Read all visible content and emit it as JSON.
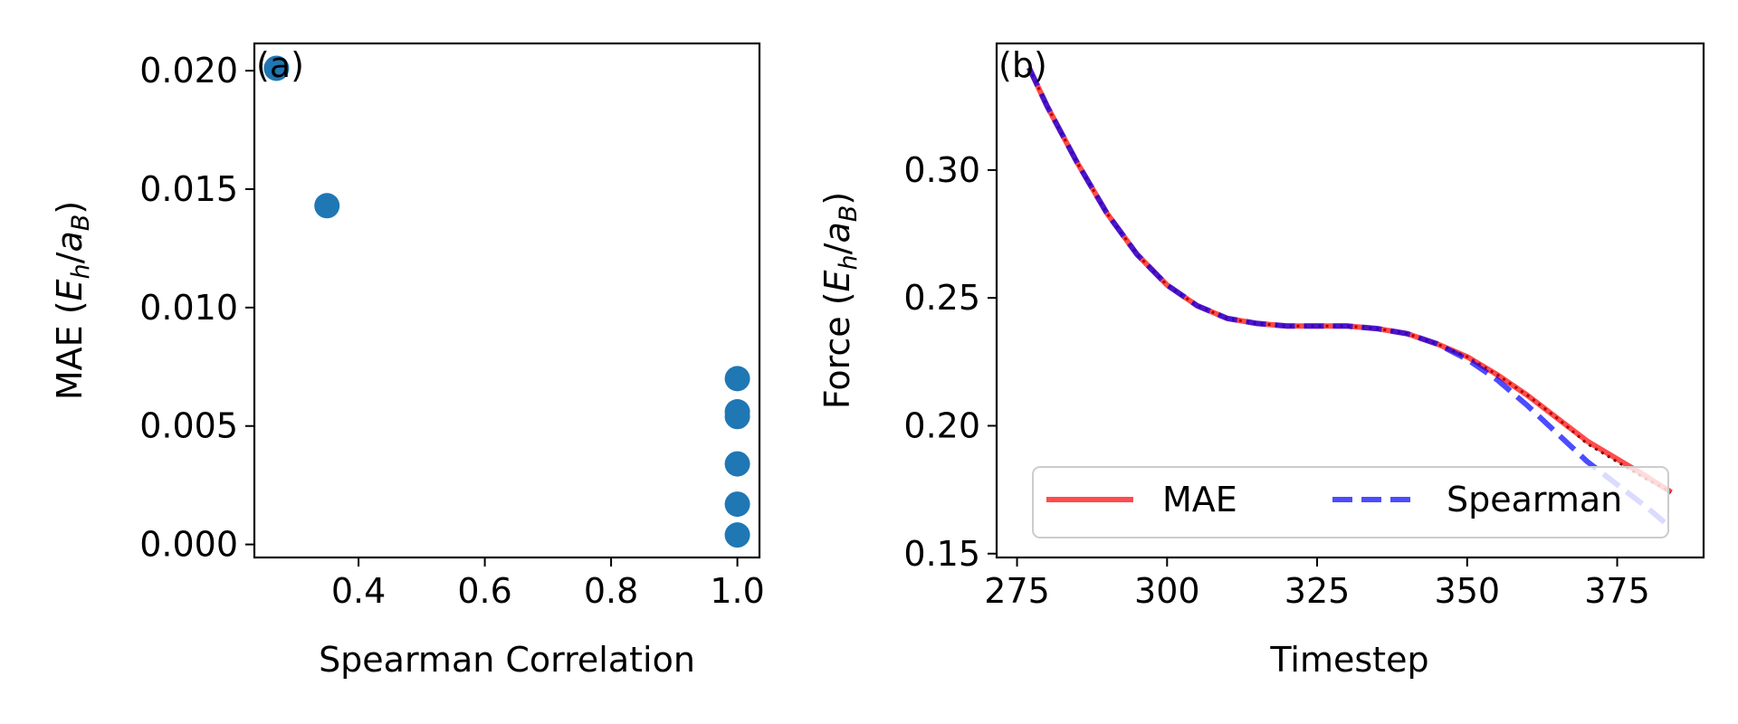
{
  "chart_data": [
    {
      "type": "scatter",
      "panel_label": "(a)",
      "xlabel": "Spearman Correlation",
      "ylabel_main": "MAE (",
      "ylabel_E": "E",
      "ylabel_h": "h",
      "ylabel_slash": "/",
      "ylabel_a": "a",
      "ylabel_B": "B",
      "ylabel_close": ")",
      "xlim": [
        0.235,
        1.035
      ],
      "ylim": [
        -0.00055,
        0.02115
      ],
      "xticks": [
        0.4,
        0.6,
        0.8,
        1.0
      ],
      "xtick_labels": [
        "0.4",
        "0.6",
        "0.8",
        "1.0"
      ],
      "yticks": [
        0.0,
        0.005,
        0.01,
        0.015,
        0.02
      ],
      "ytick_labels": [
        "0.000",
        "0.005",
        "0.010",
        "0.015",
        "0.020"
      ],
      "marker_color": "#1f77b4",
      "x": [
        0.27,
        0.35,
        1.0,
        1.0,
        1.0,
        1.0,
        1.0,
        1.0
      ],
      "y": [
        0.0201,
        0.0143,
        0.007,
        0.0056,
        0.0054,
        0.0034,
        0.0017,
        0.0004
      ],
      "grid": false
    },
    {
      "type": "line",
      "panel_label": "(b)",
      "xlabel": "Timestep",
      "ylabel_main": "Force (",
      "ylabel_E": "E",
      "ylabel_h": "h",
      "ylabel_slash": "/",
      "ylabel_a": "a",
      "ylabel_B": "B",
      "ylabel_close": ")",
      "xlim": [
        271.6,
        389.4
      ],
      "ylim": [
        0.1485,
        0.3495
      ],
      "xticks": [
        275,
        300,
        325,
        350,
        375
      ],
      "xtick_labels": [
        "275",
        "300",
        "325",
        "350",
        "375"
      ],
      "yticks": [
        0.15,
        0.2,
        0.25,
        0.3
      ],
      "ytick_labels": [
        "0.15",
        "0.20",
        "0.25",
        "0.30"
      ],
      "legend_position": "lower right",
      "grid": false,
      "x": [
        277,
        280,
        285,
        290,
        295,
        300,
        305,
        310,
        315,
        320,
        325,
        330,
        335,
        340,
        345,
        350,
        355,
        360,
        365,
        370,
        375,
        380,
        384
      ],
      "reference_color": "#000000",
      "reference": [
        0.34,
        0.325,
        0.303,
        0.283,
        0.267,
        0.255,
        0.247,
        0.242,
        0.24,
        0.239,
        0.239,
        0.239,
        0.238,
        0.236,
        0.232,
        0.227,
        0.22,
        0.212,
        0.203,
        0.193,
        0.186,
        0.179,
        0.174
      ],
      "series": [
        {
          "name": "MAE",
          "color": "#ff0000",
          "dash": "solid",
          "values": [
            0.34,
            0.325,
            0.303,
            0.283,
            0.267,
            0.255,
            0.247,
            0.242,
            0.24,
            0.239,
            0.239,
            0.239,
            0.238,
            0.236,
            0.232,
            0.227,
            0.22,
            0.212,
            0.203,
            0.194,
            0.187,
            0.18,
            0.174
          ]
        },
        {
          "name": "Spearman",
          "color": "#0000ff",
          "dash": "dashed",
          "values": [
            0.34,
            0.325,
            0.303,
            0.283,
            0.267,
            0.255,
            0.247,
            0.242,
            0.24,
            0.239,
            0.239,
            0.239,
            0.238,
            0.236,
            0.232,
            0.226,
            0.218,
            0.208,
            0.197,
            0.186,
            0.177,
            0.168,
            0.16
          ]
        }
      ]
    }
  ]
}
